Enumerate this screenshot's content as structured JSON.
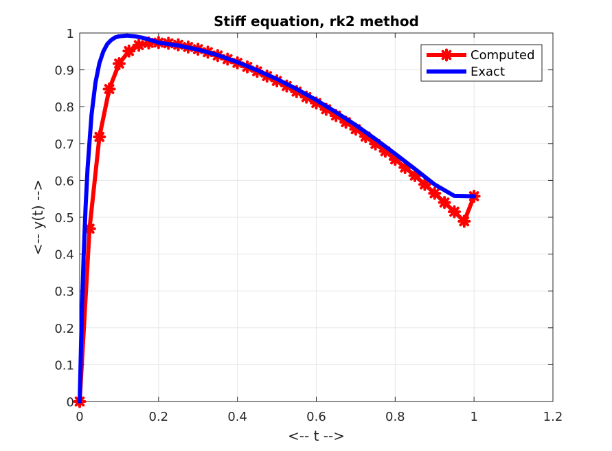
{
  "chart_data": {
    "type": "line",
    "title": "Stiff equation, rk2 method",
    "xlabel": "<-- t -->",
    "ylabel": "<-- y(t) -->",
    "xlim": [
      0,
      1.2
    ],
    "ylim": [
      0,
      1
    ],
    "xticks": [
      "0",
      "0.2",
      "0.4",
      "0.6",
      "0.8",
      "1",
      "1.2"
    ],
    "yticks": [
      "0",
      "0.1",
      "0.2",
      "0.3",
      "0.4",
      "0.5",
      "0.6",
      "0.7",
      "0.8",
      "0.9",
      "1"
    ],
    "grid": true,
    "legend_position": "top-right",
    "series": [
      {
        "name": "Computed",
        "color": "#ff0000",
        "marker": "asterisk",
        "x": [
          0,
          0.025,
          0.05,
          0.075,
          0.1,
          0.125,
          0.15,
          0.175,
          0.2,
          0.225,
          0.25,
          0.275,
          0.3,
          0.325,
          0.35,
          0.375,
          0.4,
          0.425,
          0.45,
          0.475,
          0.5,
          0.525,
          0.55,
          0.575,
          0.6,
          0.625,
          0.65,
          0.675,
          0.7,
          0.725,
          0.75,
          0.775,
          0.8,
          0.825,
          0.85,
          0.875,
          0.9,
          0.925,
          0.95,
          0.975,
          1.0
        ],
        "y": [
          0,
          0.469,
          0.718,
          0.848,
          0.917,
          0.951,
          0.967,
          0.973,
          0.974,
          0.972,
          0.968,
          0.962,
          0.956,
          0.948,
          0.939,
          0.929,
          0.919,
          0.908,
          0.896,
          0.883,
          0.87,
          0.856,
          0.841,
          0.826,
          0.81,
          0.793,
          0.776,
          0.758,
          0.739,
          0.719,
          0.699,
          0.679,
          0.657,
          0.635,
          0.613,
          0.589,
          0.565,
          0.54,
          0.515,
          0.489,
          0.557
        ]
      },
      {
        "name": "Exact",
        "color": "#0000ff",
        "marker": "none",
        "x": [
          0,
          0.005,
          0.01,
          0.015,
          0.02,
          0.03,
          0.04,
          0.05,
          0.06,
          0.07,
          0.08,
          0.09,
          0.1,
          0.12,
          0.14,
          0.16,
          0.18,
          0.2,
          0.25,
          0.3,
          0.35,
          0.4,
          0.45,
          0.5,
          0.55,
          0.6,
          0.65,
          0.7,
          0.75,
          0.8,
          0.85,
          0.9,
          0.95,
          1.0
        ],
        "y": [
          0,
          0.221,
          0.393,
          0.528,
          0.632,
          0.777,
          0.865,
          0.918,
          0.95,
          0.97,
          0.981,
          0.988,
          0.991,
          0.993,
          0.991,
          0.987,
          0.981,
          0.974,
          0.966,
          0.955,
          0.94,
          0.921,
          0.899,
          0.875,
          0.848,
          0.818,
          0.785,
          0.75,
          0.712,
          0.672,
          0.631,
          0.589,
          0.558,
          0.557
        ]
      }
    ]
  }
}
